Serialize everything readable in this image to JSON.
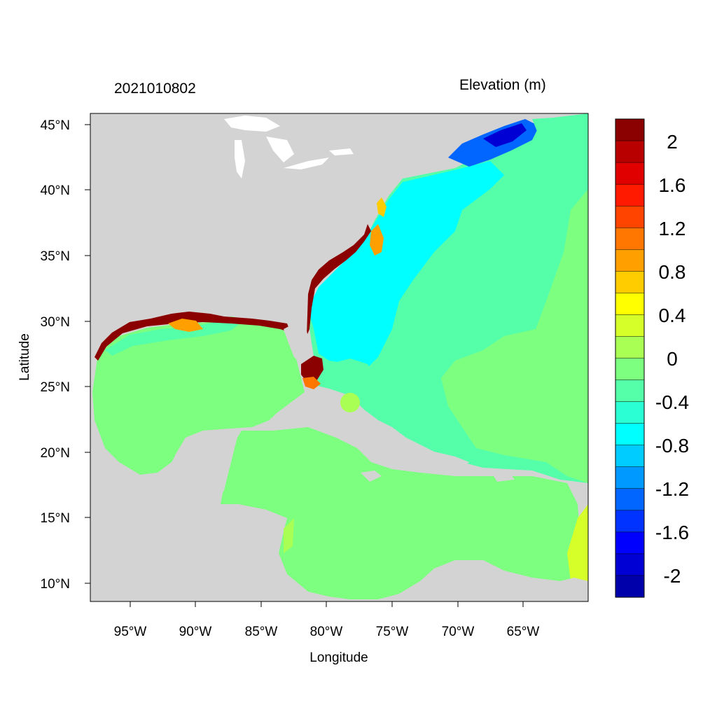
{
  "map": {
    "timestamp": "2021010802",
    "colorbar_title": "Elevation (m)",
    "xlabel": "Longitude",
    "ylabel": "Latitude",
    "x_ticks": [
      "95°W",
      "90°W",
      "85°W",
      "80°W",
      "75°W",
      "70°W",
      "65°W"
    ],
    "y_ticks": [
      "45°N",
      "40°N",
      "35°N",
      "30°N",
      "25°N",
      "20°N",
      "15°N",
      "10°N"
    ],
    "colors": {
      "land": "#d3d3d3",
      "background": "#ffffff",
      "frame": "#000000"
    }
  },
  "legend": {
    "labels": [
      "2",
      "1.6",
      "1.2",
      "0.8",
      "0.4",
      "0",
      "-0.4",
      "-0.8",
      "-1.2",
      "-1.6",
      "-2"
    ],
    "colors": [
      "#8b0000",
      "#b80000",
      "#e00000",
      "#ff1a00",
      "#ff4400",
      "#ff7700",
      "#ff9f00",
      "#ffcc00",
      "#ffff00",
      "#d6ff2a",
      "#aaff55",
      "#7dff80",
      "#55ffaa",
      "#2bffd4",
      "#00ffff",
      "#00ccff",
      "#0099ff",
      "#0066ff",
      "#0033ff",
      "#0000ff",
      "#0000d4",
      "#0000aa"
    ]
  }
}
